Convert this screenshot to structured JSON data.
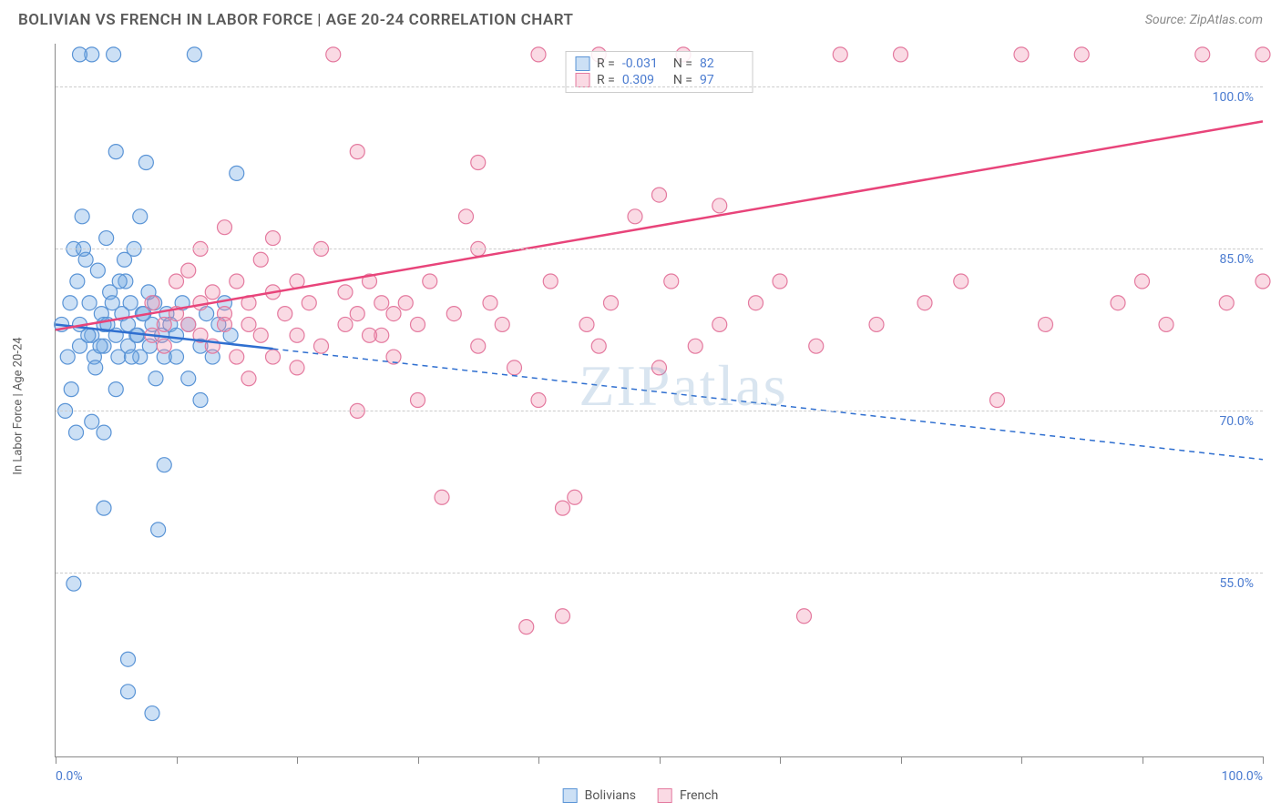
{
  "title": "BOLIVIAN VS FRENCH IN LABOR FORCE | AGE 20-24 CORRELATION CHART",
  "source": "Source: ZipAtlas.com",
  "y_axis_label": "In Labor Force | Age 20-24",
  "watermark": "ZIPatlas",
  "chart": {
    "type": "scatter",
    "x_range": [
      0,
      100
    ],
    "y_range": [
      38,
      104
    ],
    "y_ticks": [
      55.0,
      70.0,
      85.0,
      100.0
    ],
    "y_tick_labels": [
      "55.0%",
      "70.0%",
      "85.0%",
      "100.0%"
    ],
    "x_ticks": [
      0,
      10,
      20,
      30,
      40,
      50,
      60,
      70,
      80,
      90,
      100
    ],
    "x_tick_labels": {
      "0": "0.0%",
      "100": "100.0%"
    },
    "background_color": "#ffffff",
    "grid_color": "#cccccc",
    "marker_radius": 8,
    "marker_stroke_width": 1.2,
    "trend_line_width": 2.5,
    "series": [
      {
        "name": "Bolivians",
        "color_fill": "rgba(110,165,225,0.35)",
        "color_stroke": "#5a94d6",
        "trend_color": "#2f6fd0",
        "trend_solid_end_x": 18,
        "trend": {
          "x1": 0,
          "y1": 78.0,
          "x2": 100,
          "y2": 65.5
        },
        "R": "-0.031",
        "N": "82",
        "points": [
          [
            0.5,
            78
          ],
          [
            1,
            75
          ],
          [
            1.2,
            80
          ],
          [
            1.5,
            85
          ],
          [
            1.8,
            82
          ],
          [
            2,
            78
          ],
          [
            2,
            76
          ],
          [
            2.2,
            88
          ],
          [
            2.5,
            84
          ],
          [
            2.8,
            80
          ],
          [
            3,
            77
          ],
          [
            3,
            103
          ],
          [
            3.2,
            75
          ],
          [
            3.5,
            83
          ],
          [
            3.8,
            79
          ],
          [
            4,
            78
          ],
          [
            4,
            76
          ],
          [
            4.2,
            86
          ],
          [
            4.5,
            81
          ],
          [
            4.8,
            103
          ],
          [
            5,
            77
          ],
          [
            5,
            94
          ],
          [
            5.2,
            75
          ],
          [
            5.5,
            79
          ],
          [
            5.8,
            82
          ],
          [
            6,
            78
          ],
          [
            6,
            76
          ],
          [
            6.2,
            80
          ],
          [
            6.5,
            85
          ],
          [
            6.8,
            77
          ],
          [
            7,
            75
          ],
          [
            7,
            88
          ],
          [
            7.2,
            79
          ],
          [
            7.5,
            93
          ],
          [
            7.8,
            76
          ],
          [
            8,
            78
          ],
          [
            8,
            42
          ],
          [
            8.2,
            80
          ],
          [
            8.5,
            59
          ],
          [
            8.8,
            77
          ],
          [
            9,
            75
          ],
          [
            9,
            65
          ],
          [
            9.2,
            79
          ],
          [
            9.5,
            78
          ],
          [
            0.8,
            70
          ],
          [
            1.3,
            72
          ],
          [
            1.7,
            68
          ],
          [
            2.3,
            85
          ],
          [
            2.7,
            77
          ],
          [
            3.3,
            74
          ],
          [
            3.7,
            76
          ],
          [
            4.3,
            78
          ],
          [
            4.7,
            80
          ],
          [
            5.3,
            82
          ],
          [
            5.7,
            84
          ],
          [
            6.3,
            75
          ],
          [
            6.7,
            77
          ],
          [
            7.3,
            79
          ],
          [
            7.7,
            81
          ],
          [
            8.3,
            73
          ],
          [
            1.5,
            54
          ],
          [
            2,
            103
          ],
          [
            3,
            69
          ],
          [
            4,
            68
          ],
          [
            5,
            72
          ],
          [
            6,
            47
          ],
          [
            10,
            77
          ],
          [
            10.5,
            80
          ],
          [
            11,
            78
          ],
          [
            11.5,
            103
          ],
          [
            12,
            76
          ],
          [
            12.5,
            79
          ],
          [
            13,
            75
          ],
          [
            13.5,
            78
          ],
          [
            14,
            80
          ],
          [
            14.5,
            77
          ],
          [
            15,
            92
          ],
          [
            11,
            73
          ],
          [
            12,
            71
          ],
          [
            10,
            75
          ],
          [
            6,
            44
          ],
          [
            4,
            61
          ]
        ]
      },
      {
        "name": "French",
        "color_fill": "rgba(240,140,170,0.32)",
        "color_stroke": "#e47a9f",
        "trend_color": "#e8447a",
        "trend_solid_end_x": 100,
        "trend": {
          "x1": 0,
          "y1": 77.5,
          "x2": 100,
          "y2": 96.8
        },
        "R": "0.309",
        "N": "97",
        "points": [
          [
            8,
            80
          ],
          [
            9,
            78
          ],
          [
            10,
            82
          ],
          [
            11,
            83
          ],
          [
            12,
            80
          ],
          [
            12,
            85
          ],
          [
            13,
            81
          ],
          [
            14,
            79
          ],
          [
            14,
            87
          ],
          [
            15,
            82
          ],
          [
            16,
            80
          ],
          [
            16,
            78
          ],
          [
            17,
            84
          ],
          [
            18,
            81
          ],
          [
            18,
            86
          ],
          [
            19,
            79
          ],
          [
            20,
            82
          ],
          [
            20,
            77
          ],
          [
            21,
            80
          ],
          [
            22,
            85
          ],
          [
            23,
            103
          ],
          [
            24,
            81
          ],
          [
            25,
            79
          ],
          [
            25,
            94
          ],
          [
            26,
            82
          ],
          [
            27,
            80
          ],
          [
            27,
            77
          ],
          [
            28,
            75
          ],
          [
            29,
            80
          ],
          [
            30,
            71
          ],
          [
            31,
            82
          ],
          [
            32,
            62
          ],
          [
            33,
            79
          ],
          [
            34,
            88
          ],
          [
            35,
            76
          ],
          [
            35,
            93
          ],
          [
            36,
            80
          ],
          [
            37,
            78
          ],
          [
            38,
            74
          ],
          [
            39,
            50
          ],
          [
            40,
            71
          ],
          [
            40,
            103
          ],
          [
            41,
            82
          ],
          [
            42,
            61
          ],
          [
            42,
            51
          ],
          [
            43,
            62
          ],
          [
            44,
            78
          ],
          [
            45,
            76
          ],
          [
            45,
            103
          ],
          [
            46,
            80
          ],
          [
            48,
            88
          ],
          [
            50,
            74
          ],
          [
            50,
            90
          ],
          [
            51,
            82
          ],
          [
            52,
            103
          ],
          [
            53,
            76
          ],
          [
            55,
            89
          ],
          [
            55,
            78
          ],
          [
            58,
            80
          ],
          [
            60,
            82
          ],
          [
            62,
            51
          ],
          [
            63,
            76
          ],
          [
            65,
            103
          ],
          [
            68,
            78
          ],
          [
            70,
            103
          ],
          [
            72,
            80
          ],
          [
            75,
            82
          ],
          [
            78,
            71
          ],
          [
            80,
            103
          ],
          [
            82,
            78
          ],
          [
            85,
            103
          ],
          [
            88,
            80
          ],
          [
            90,
            82
          ],
          [
            92,
            78
          ],
          [
            95,
            103
          ],
          [
            97,
            80
          ],
          [
            100,
            82
          ],
          [
            100,
            103
          ],
          [
            15,
            75
          ],
          [
            16,
            73
          ],
          [
            17,
            77
          ],
          [
            25,
            70
          ],
          [
            30,
            78
          ],
          [
            35,
            85
          ],
          [
            8,
            77
          ],
          [
            9,
            76
          ],
          [
            10,
            79
          ],
          [
            11,
            78
          ],
          [
            12,
            77
          ],
          [
            13,
            76
          ],
          [
            14,
            78
          ],
          [
            18,
            75
          ],
          [
            20,
            74
          ],
          [
            22,
            76
          ],
          [
            24,
            78
          ],
          [
            26,
            77
          ],
          [
            28,
            79
          ]
        ]
      }
    ]
  },
  "stats_header": {
    "r_label": "R =",
    "n_label": "N ="
  },
  "bottom_legend": [
    "Bolivians",
    "French"
  ]
}
